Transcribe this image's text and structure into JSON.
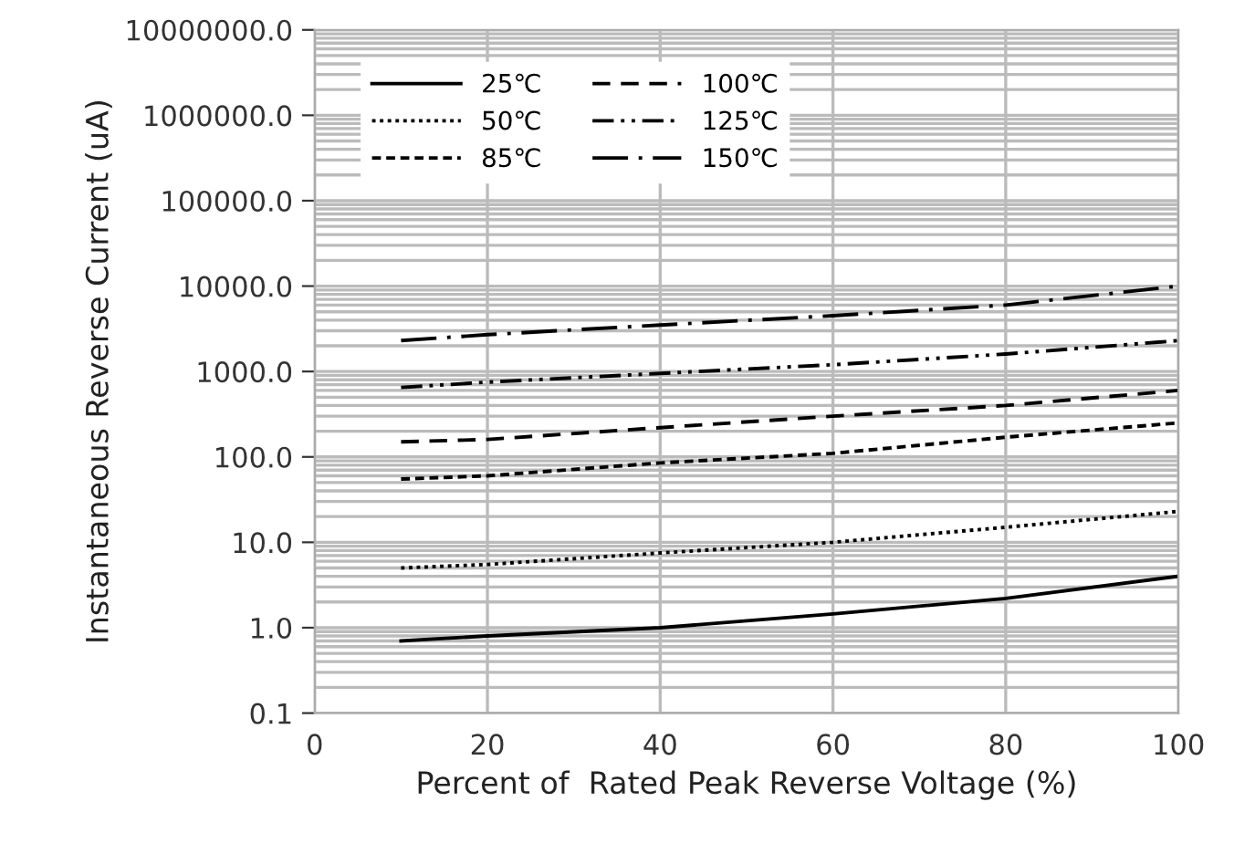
{
  "chart_data": {
    "type": "line",
    "xlabel": "Percent of  Rated Peak Reverse Voltage (%)",
    "ylabel": "Instantaneous Reverse Current (uA)",
    "x": [
      10,
      20,
      40,
      60,
      80,
      100
    ],
    "series": [
      {
        "name": "25℃",
        "color": "#000000",
        "line_style": "solid",
        "values": [
          0.7,
          0.8,
          1.0,
          1.45,
          2.2,
          4.0
        ]
      },
      {
        "name": "50℃",
        "color": "#000000",
        "line_style": "dotted",
        "values": [
          5,
          5.5,
          7.5,
          10,
          15,
          23
        ]
      },
      {
        "name": "85℃",
        "color": "#000000",
        "line_style": "shortdash",
        "values": [
          55,
          60,
          85,
          110,
          170,
          250
        ]
      },
      {
        "name": "100℃",
        "color": "#000000",
        "line_style": "dashed",
        "values": [
          150,
          160,
          220,
          300,
          400,
          600
        ]
      },
      {
        "name": "125℃",
        "color": "#000000",
        "line_style": "dashdotdot",
        "values": [
          650,
          750,
          950,
          1200,
          1600,
          2300
        ]
      },
      {
        "name": "150℃",
        "color": "#000000",
        "line_style": "longdash",
        "values": [
          2300,
          2700,
          3500,
          4500,
          6000,
          10000
        ]
      }
    ],
    "log": "y",
    "xlim": [
      0,
      100
    ],
    "xticks": [
      0,
      20,
      40,
      60,
      80,
      100
    ],
    "ylim": [
      0.1,
      10000000
    ],
    "yticks": [
      {
        "value": 0.1,
        "label": "0.1"
      },
      {
        "value": 1,
        "label": "1.0"
      },
      {
        "value": 10,
        "label": "10.0"
      },
      {
        "value": 100,
        "label": "100.0"
      },
      {
        "value": 1000,
        "label": "1000.0"
      },
      {
        "value": 10000,
        "label": "10000.0"
      },
      {
        "value": 100000,
        "label": "100000.0"
      },
      {
        "value": 1000000,
        "label": "1000000.0"
      },
      {
        "value": 10000000,
        "label": "10000000.0"
      }
    ],
    "grid": true,
    "legend": "top left",
    "marker": "none"
  }
}
